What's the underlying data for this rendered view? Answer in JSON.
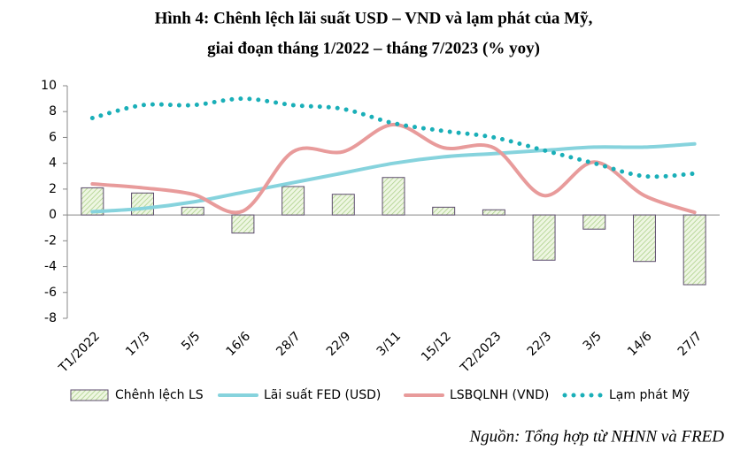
{
  "chart_data": {
    "type": "bar-line",
    "title": "Hình 4: Chênh lệch lãi suất USD – VND và lạm phát của Mỹ,",
    "subtitle": "giai đoạn tháng 1/2022 – tháng 7/2023 (% yoy)",
    "source": "Nguồn: Tổng hợp từ NHNN và FRED",
    "categories": [
      "T1/2022",
      "17/3",
      "5/5",
      "16/6",
      "28/7",
      "22/9",
      "3/11",
      "15/12",
      "T2/2023",
      "22/3",
      "3/5",
      "14/6",
      "27/7"
    ],
    "series": [
      {
        "name": "Chênh lệch LS",
        "type": "bar",
        "color": "#d9ecc0",
        "values": [
          2.1,
          1.7,
          0.6,
          -1.4,
          2.2,
          1.6,
          2.9,
          0.6,
          0.4,
          -3.5,
          -1.1,
          -3.6,
          -5.4
        ]
      },
      {
        "name": "Lãi suất FED (USD)",
        "type": "line",
        "color": "#86d3dd",
        "values": [
          0.25,
          0.5,
          1.0,
          1.75,
          2.5,
          3.25,
          4.0,
          4.5,
          4.75,
          5.0,
          5.25,
          5.25,
          5.5
        ]
      },
      {
        "name": "LSBQLNH (VND)",
        "type": "line",
        "color": "#e89b9b",
        "values": [
          2.4,
          2.1,
          1.6,
          0.3,
          4.9,
          4.9,
          7.0,
          5.2,
          5.2,
          1.5,
          4.1,
          1.5,
          0.2
        ]
      },
      {
        "name": "Lạm phát Mỹ",
        "type": "dotted",
        "color": "#1aafb8",
        "values": [
          7.5,
          8.5,
          8.5,
          9.0,
          8.5,
          8.2,
          7.1,
          6.5,
          6.0,
          5.0,
          4.0,
          3.0,
          3.2
        ]
      }
    ],
    "ylim": [
      -8,
      10
    ],
    "yticks": [
      -8,
      -6,
      -4,
      -2,
      0,
      2,
      4,
      6,
      8,
      10
    ],
    "grid": false
  }
}
